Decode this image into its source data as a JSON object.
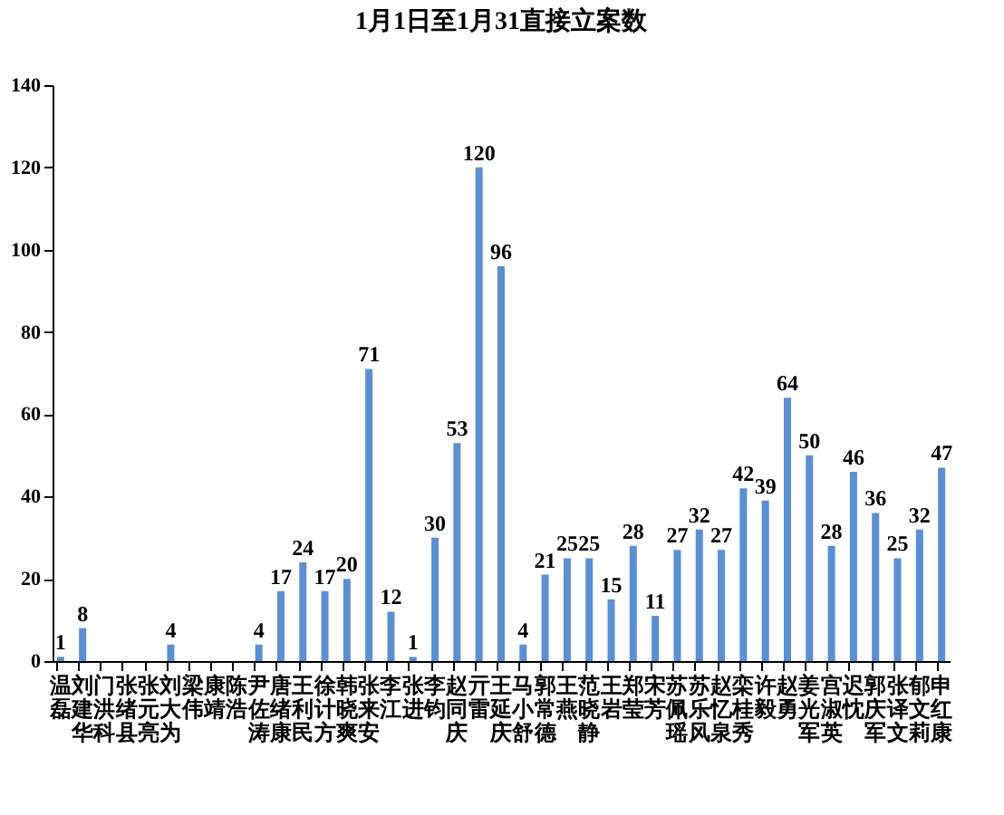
{
  "chart_data": {
    "type": "bar",
    "title": "1月1日至1月31直接立案数",
    "categories": [
      "温磊",
      "刘建华",
      "门洪科",
      "张绪县",
      "张元亮",
      "刘大为",
      "梁伟",
      "康靖",
      "陈浩",
      "尹佐涛",
      "唐绪康",
      "王利民",
      "徐计方",
      "韩晓爽",
      "张来安",
      "李江",
      "张进",
      "李钧",
      "赵同庆",
      "亓雷",
      "王延庆",
      "马小舒",
      "郭常德",
      "王燕",
      "范晓静",
      "王岩",
      "郑莹",
      "宋芳",
      "苏佩瑶",
      "苏乐风",
      "赵忆泉",
      "栾桂秀",
      "许毅",
      "赵勇",
      "姜光军",
      "宫淑英",
      "迟忱",
      "郭庆军",
      "张译文",
      "郁文莉",
      "申红康"
    ],
    "values": [
      1,
      8,
      0,
      0,
      0,
      4,
      0,
      0,
      0,
      4,
      17,
      24,
      17,
      20,
      71,
      12,
      1,
      30,
      53,
      120,
      96,
      4,
      21,
      25,
      25,
      15,
      28,
      11,
      27,
      32,
      27,
      42,
      39,
      64,
      50,
      28,
      46,
      36,
      25,
      32,
      47
    ],
    "value_labels": [
      "1",
      "8",
      null,
      null,
      null,
      "4",
      null,
      null,
      null,
      "4",
      "17",
      "24",
      "17",
      "20",
      "71",
      "12",
      "1",
      "30",
      "53",
      "120",
      "96",
      "4",
      "21",
      "25",
      "25",
      "15",
      "28",
      "11",
      "27",
      "32",
      "27",
      "42",
      "39",
      "64",
      "50",
      "28",
      "46",
      "36",
      "25",
      "32",
      "47"
    ],
    "color": "#5b8fd3",
    "ylim": [
      0,
      140
    ],
    "yticks": [
      0,
      20,
      40,
      60,
      80,
      100,
      120,
      140
    ],
    "grid": false
  }
}
